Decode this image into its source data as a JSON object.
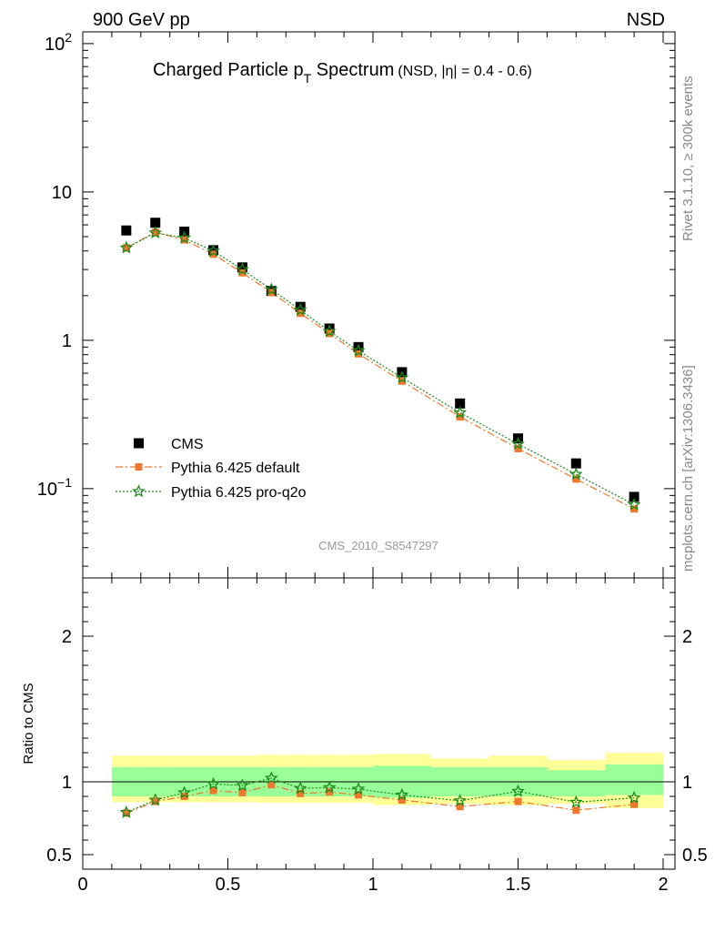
{
  "header": {
    "left": "900 GeV pp",
    "right": "NSD"
  },
  "side_labels": {
    "rivet": "Rivet 3.1.10, ≥ 300k events",
    "mcplots": "mcplots.cern.ch [arXiv:1306.3436]"
  },
  "colors": {
    "data": "#000000",
    "default": "#f0782d",
    "proq2o": "#1a8a1a",
    "band_outer": "#ffff99",
    "band_inner": "#99ff99",
    "watermark": "#999999"
  },
  "chart_data": [
    {
      "type": "scatter",
      "title_main": "Charged Particle p",
      "title_sub": "T",
      "title_main2": " Spectrum",
      "title_small": "(NSD, |η| = 0.4 - 0.6)",
      "watermark": "CMS_2010_S8547297",
      "yscale": "log",
      "xlim": [
        0,
        2
      ],
      "ylim": [
        0.025,
        120
      ],
      "y_ticks": [
        {
          "value": 0.1,
          "base": "10",
          "exp": "−1"
        },
        {
          "value": 1,
          "base": "1",
          "exp": ""
        },
        {
          "value": 10,
          "base": "10",
          "exp": ""
        },
        {
          "value": 100,
          "base": "10",
          "exp": "2"
        }
      ],
      "legend_position": "bottom-left",
      "legend": [
        {
          "key": "cms",
          "label": "CMS"
        },
        {
          "key": "default",
          "label": "Pythia 6.425 default"
        },
        {
          "key": "proq2o",
          "label": "Pythia 6.425 pro-q2o"
        }
      ],
      "x": [
        0.15,
        0.25,
        0.35,
        0.45,
        0.55,
        0.65,
        0.75,
        0.85,
        0.95,
        1.1,
        1.3,
        1.5,
        1.7,
        1.9
      ],
      "series": [
        {
          "key": "cms",
          "name": "CMS",
          "values": [
            5.5,
            6.2,
            5.4,
            4.05,
            3.1,
            2.15,
            1.68,
            1.2,
            0.9,
            0.61,
            0.375,
            0.218,
            0.148,
            0.088
          ]
        },
        {
          "key": "default",
          "name": "Pythia 6.425 default",
          "values": [
            4.2,
            5.35,
            4.75,
            3.8,
            2.85,
            2.1,
            1.52,
            1.11,
            0.81,
            0.53,
            0.305,
            0.186,
            0.116,
            0.073
          ]
        },
        {
          "key": "proq2o",
          "name": "Pythia 6.425 pro-q2o",
          "values": [
            4.2,
            5.3,
            4.9,
            4.0,
            3.0,
            2.2,
            1.6,
            1.15,
            0.85,
            0.56,
            0.325,
            0.2,
            0.125,
            0.078
          ]
        }
      ]
    },
    {
      "type": "scatter",
      "ylabel": "Ratio to CMS",
      "xlim": [
        0,
        2
      ],
      "ylim": [
        0.4,
        2.4
      ],
      "x_ticks": [
        {
          "value": 0,
          "label": "0"
        },
        {
          "value": 0.5,
          "label": "0.5"
        },
        {
          "value": 1,
          "label": "1"
        },
        {
          "value": 1.5,
          "label": "1.5"
        },
        {
          "value": 2,
          "label": "2"
        }
      ],
      "y_ticks": [
        {
          "value": 0.5,
          "label": "0.5"
        },
        {
          "value": 1,
          "label": "1"
        },
        {
          "value": 2,
          "label": "2"
        }
      ],
      "reference_line": 1,
      "bands": [
        {
          "x0": 0.1,
          "x1": 0.2,
          "outer": [
            0.86,
            1.18
          ],
          "inner": [
            0.9,
            1.1
          ]
        },
        {
          "x0": 0.2,
          "x1": 0.3,
          "outer": [
            0.86,
            1.18
          ],
          "inner": [
            0.9,
            1.1
          ]
        },
        {
          "x0": 0.3,
          "x1": 0.4,
          "outer": [
            0.86,
            1.18
          ],
          "inner": [
            0.9,
            1.1
          ]
        },
        {
          "x0": 0.4,
          "x1": 0.5,
          "outer": [
            0.86,
            1.18
          ],
          "inner": [
            0.9,
            1.1
          ]
        },
        {
          "x0": 0.5,
          "x1": 0.6,
          "outer": [
            0.86,
            1.18
          ],
          "inner": [
            0.9,
            1.1
          ]
        },
        {
          "x0": 0.6,
          "x1": 0.7,
          "outer": [
            0.855,
            1.185
          ],
          "inner": [
            0.9,
            1.1
          ]
        },
        {
          "x0": 0.7,
          "x1": 0.8,
          "outer": [
            0.855,
            1.185
          ],
          "inner": [
            0.9,
            1.1
          ]
        },
        {
          "x0": 0.8,
          "x1": 0.9,
          "outer": [
            0.855,
            1.185
          ],
          "inner": [
            0.9,
            1.1
          ]
        },
        {
          "x0": 0.9,
          "x1": 1.0,
          "outer": [
            0.855,
            1.185
          ],
          "inner": [
            0.9,
            1.1
          ]
        },
        {
          "x0": 1.0,
          "x1": 1.2,
          "outer": [
            0.84,
            1.19
          ],
          "inner": [
            0.89,
            1.11
          ]
        },
        {
          "x0": 1.2,
          "x1": 1.4,
          "outer": [
            0.85,
            1.16
          ],
          "inner": [
            0.9,
            1.1
          ]
        },
        {
          "x0": 1.4,
          "x1": 1.6,
          "outer": [
            0.84,
            1.18
          ],
          "inner": [
            0.9,
            1.1
          ]
        },
        {
          "x0": 1.6,
          "x1": 1.8,
          "outer": [
            0.85,
            1.15
          ],
          "inner": [
            0.9,
            1.08
          ]
        },
        {
          "x0": 1.8,
          "x1": 2.0,
          "outer": [
            0.82,
            1.2
          ],
          "inner": [
            0.91,
            1.12
          ]
        }
      ],
      "x": [
        0.15,
        0.25,
        0.35,
        0.45,
        0.55,
        0.65,
        0.75,
        0.85,
        0.95,
        1.1,
        1.3,
        1.5,
        1.7,
        1.9
      ],
      "series": [
        {
          "key": "default",
          "name": "Pythia 6.425 default",
          "values": [
            0.785,
            0.865,
            0.9,
            0.94,
            0.925,
            0.98,
            0.92,
            0.93,
            0.91,
            0.875,
            0.83,
            0.865,
            0.805,
            0.845
          ]
        },
        {
          "key": "proq2o",
          "name": "Pythia 6.425 pro-q2o",
          "values": [
            0.79,
            0.875,
            0.925,
            0.985,
            0.975,
            1.025,
            0.955,
            0.96,
            0.95,
            0.91,
            0.87,
            0.935,
            0.86,
            0.89
          ]
        }
      ]
    }
  ]
}
